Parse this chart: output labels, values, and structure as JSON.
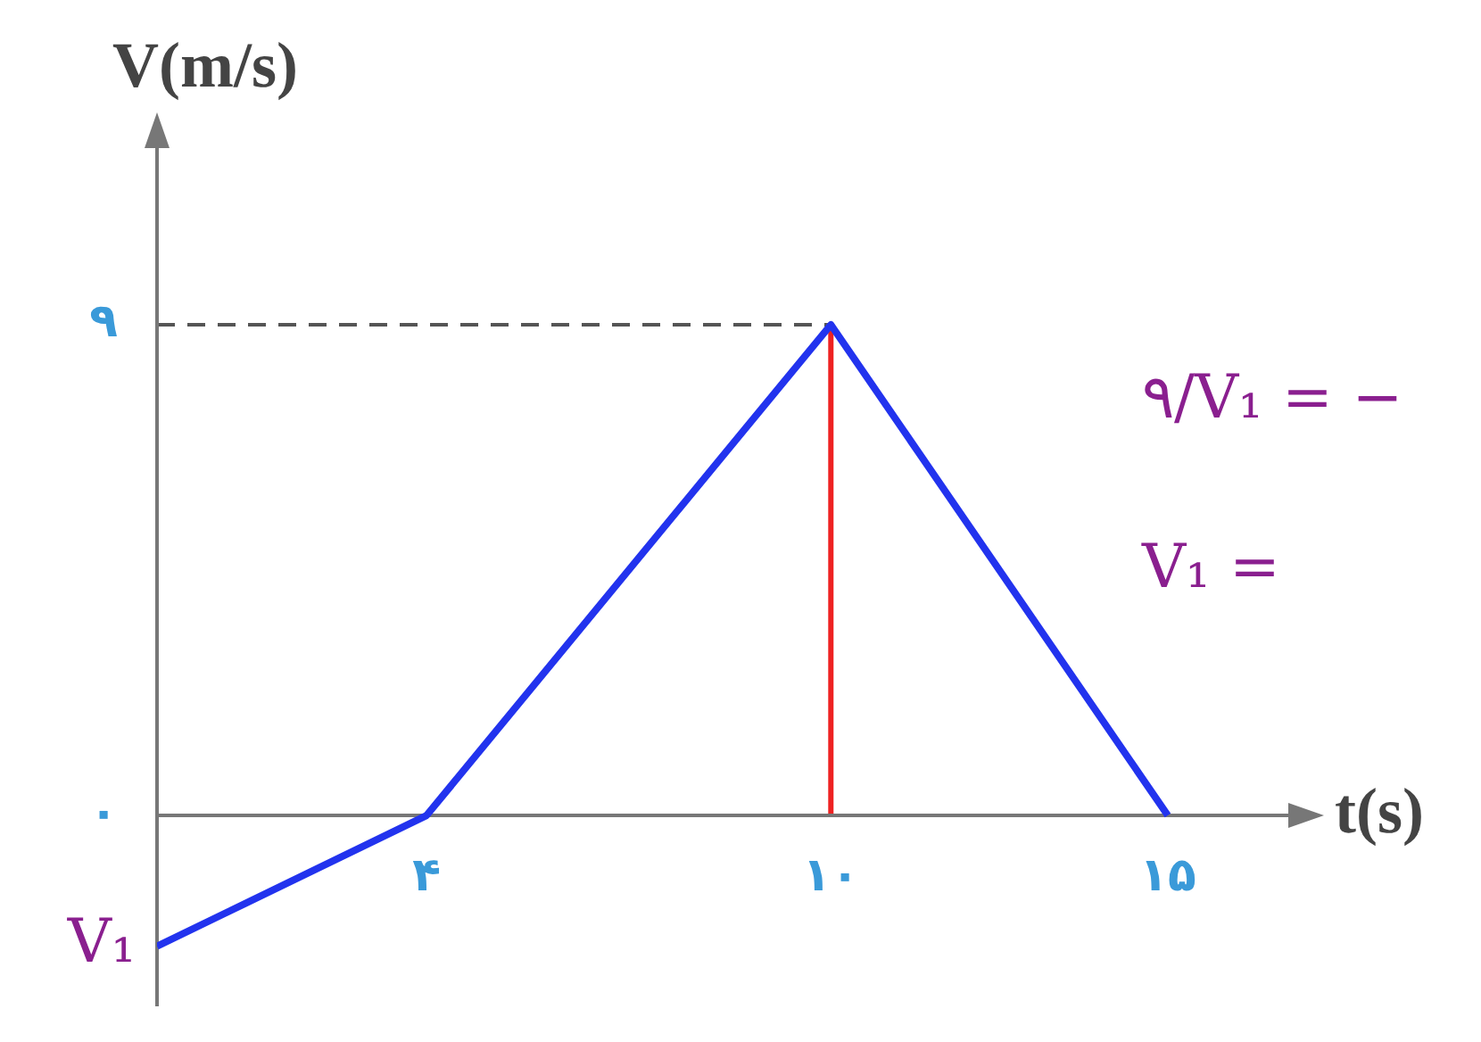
{
  "chart_data": {
    "type": "line",
    "xlabel": "t(s)",
    "ylabel": "V(m/s)",
    "x": [
      0,
      4,
      10,
      15
    ],
    "series": [
      {
        "color": "#2233ee",
        "values": [
          -2.4,
          0,
          9,
          0
        ]
      }
    ],
    "xlim": [
      0,
      17
    ],
    "ylim": [
      -3.5,
      12.5
    ],
    "xticks": [
      {
        "value": 4,
        "label": "۴"
      },
      {
        "value": 10,
        "label": "۱۰"
      },
      {
        "value": 15,
        "label": "۱۵"
      }
    ],
    "yticks": [
      {
        "value": 0,
        "label": "۰"
      },
      {
        "value": 9,
        "label": "۹"
      }
    ],
    "ref_lines": [
      {
        "axis": "y",
        "value": 9,
        "label": null,
        "color": "#555555",
        "line_style": "dashed"
      },
      {
        "axis": "x",
        "value": 10,
        "label": null,
        "color": "#ee2222",
        "line_style": "solid"
      }
    ],
    "annotations": [
      {
        "text": "V₁",
        "x": 0,
        "y": -2.4
      },
      "۹/V₁ = −",
      "V₁ ="
    ],
    "legend": false,
    "marker": "none",
    "line_style": "solid"
  }
}
